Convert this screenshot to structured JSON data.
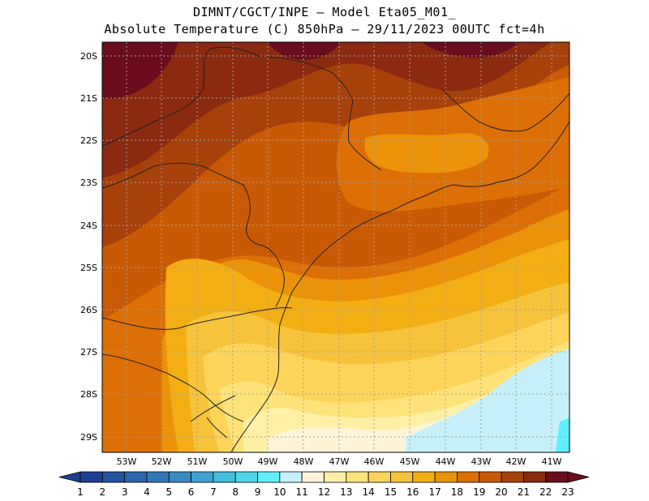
{
  "title": {
    "line1": "DIMNT/CGCT/INPE –  Model Eta05_M01_",
    "line2": "Absolute Temperature (C) 850hPa –  29/11/2023 00UTC fct=4h"
  },
  "map": {
    "lat_labels": [
      "20S",
      "21S",
      "22S",
      "23S",
      "24S",
      "25S",
      "26S",
      "27S",
      "28S",
      "29S"
    ],
    "lon_labels": [
      "53W",
      "52W",
      "51W",
      "50W",
      "49W",
      "48W",
      "47W",
      "46W",
      "45W",
      "44W",
      "43W",
      "42W",
      "41W"
    ]
  },
  "colorbar": {
    "labels": [
      "1",
      "2",
      "3",
      "4",
      "5",
      "6",
      "7",
      "8",
      "9",
      "10",
      "11",
      "12",
      "13",
      "14",
      "15",
      "16",
      "17",
      "18",
      "19",
      "20",
      "21",
      "22",
      "23"
    ],
    "colors": [
      "#1c3f91",
      "#2255a0",
      "#2a66ad",
      "#3277b8",
      "#3a8bc4",
      "#3ea2d2",
      "#43bde0",
      "#4cd7ec",
      "#60f0fa",
      "#c6f1fb",
      "#fff4d8",
      "#fff0a6",
      "#ffe37a",
      "#fcd45a",
      "#f6c33a",
      "#f3ae14",
      "#ea9308",
      "#dc6f05",
      "#c85a05",
      "#a7410a",
      "#8b2a11",
      "#6a0d1d"
    ]
  }
}
